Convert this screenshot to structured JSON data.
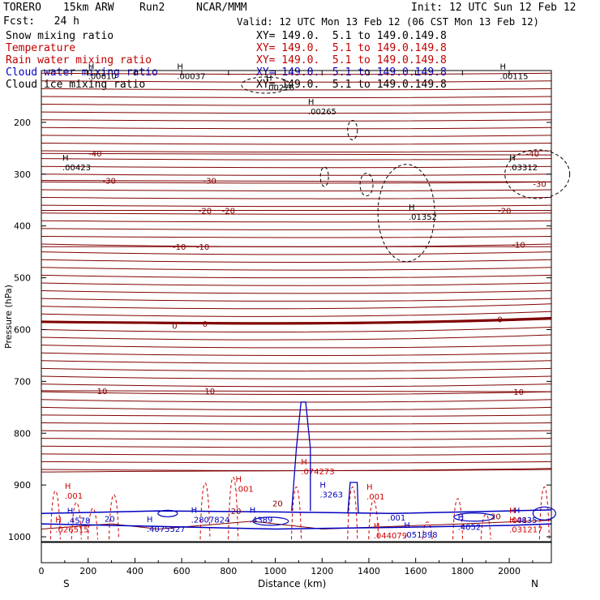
{
  "header": {
    "model": "TORERO",
    "resolution": "15km ARW",
    "run": "Run2",
    "org": "NCAR/MMM",
    "init": "Init: 12 UTC Sun 12 Feb 12",
    "fcst": "Fcst:   24 h",
    "valid": "Valid: 12 UTC Mon 13 Feb 12 (06 CST Mon 13 Feb 12)"
  },
  "fields": [
    {
      "label": "Snow mixing ratio",
      "xy": "XY= 149.0.  5.1 to 149.0.149.8",
      "color": "#000000"
    },
    {
      "label": "Temperature",
      "xy": "XY= 149.0.  5.1 to 149.0.149.8",
      "color": "#c00000"
    },
    {
      "label": "Rain water mixing ratio",
      "xy": "XY= 149.0.  5.1 to 149.0.149.8",
      "color": "#c00000"
    },
    {
      "label": "Cloud water mixing ratio",
      "xy": "XY= 149.0.  5.1 to 149.0.149.8",
      "color": "#0000c0"
    },
    {
      "label": "Cloud ice mixing ratio",
      "xy": "XY= 149.0.  5.1 to 149.0.149.8",
      "color": "#000000"
    }
  ],
  "chart_data": {
    "type": "cross-section contour",
    "xlabel": "Distance (km)",
    "ylabel": "Pressure (hPa)",
    "xlim": [
      0,
      2180
    ],
    "ylim": [
      100,
      1050
    ],
    "x_ticks": [
      0,
      200,
      400,
      600,
      800,
      1000,
      1200,
      1400,
      1600,
      1800,
      2000
    ],
    "y_ticks": [
      200,
      300,
      400,
      500,
      600,
      700,
      800,
      900,
      1000
    ],
    "end_labels": {
      "left": "S",
      "right": "N"
    },
    "colors": {
      "temperature": "#800000",
      "rain": "#d00000",
      "cloud_water": "#0000c0",
      "ice": "#000000",
      "axis": "#000000"
    },
    "temperature_isotherms": [
      {
        "label": "-40",
        "p": [
          260,
          260,
          262,
          263
        ]
      },
      {
        "label": "-30",
        "p": [
          312,
          312,
          314,
          315
        ]
      },
      {
        "label": "-20",
        "p": [
          370,
          370,
          371,
          370
        ]
      },
      {
        "label": "-10",
        "p": [
          440,
          440,
          442,
          440
        ]
      },
      {
        "label": "0",
        "p": [
          585,
          588,
          592,
          578
        ]
      },
      {
        "label": "10",
        "p": [
          718,
          718,
          722,
          720
        ]
      },
      {
        "label": "20",
        "p": [
          875,
          872,
          874,
          868
        ]
      }
    ],
    "temperature_labels": [
      {
        "text": "-40",
        "x": 230,
        "p": 260
      },
      {
        "text": "-40",
        "x": 2100,
        "p": 260
      },
      {
        "text": "-30",
        "x": 290,
        "p": 312
      },
      {
        "text": "-30",
        "x": 720,
        "p": 312
      },
      {
        "text": "-30",
        "x": 2130,
        "p": 318
      },
      {
        "text": "-20",
        "x": 700,
        "p": 370
      },
      {
        "text": "-20",
        "x": 800,
        "p": 370
      },
      {
        "text": "-20",
        "x": 1980,
        "p": 370
      },
      {
        "text": "-10",
        "x": 590,
        "p": 440
      },
      {
        "text": "-10",
        "x": 690,
        "p": 440
      },
      {
        "text": "-10",
        "x": 2040,
        "p": 436
      },
      {
        "text": "0",
        "x": 570,
        "p": 592
      },
      {
        "text": "0",
        "x": 700,
        "p": 588
      },
      {
        "text": "0",
        "x": 1960,
        "p": 580
      },
      {
        "text": "10",
        "x": 260,
        "p": 718
      },
      {
        "text": "10",
        "x": 720,
        "p": 718
      },
      {
        "text": "10",
        "x": 2040,
        "p": 720
      },
      {
        "text": "20",
        "x": 1010,
        "p": 935
      }
    ],
    "ice_maxima": [
      {
        "value": ".00610",
        "x": 200,
        "p": 110
      },
      {
        "value": ".00037",
        "x": 580,
        "p": 110
      },
      {
        "value": ".00226",
        "x": 960,
        "p": 132
      },
      {
        "value": ".00265",
        "x": 1140,
        "p": 178
      },
      {
        "value": ".00423",
        "x": 90,
        "p": 286
      },
      {
        "value": ".01352",
        "x": 1570,
        "p": 382
      },
      {
        "value": ".00115",
        "x": 1960,
        "p": 110
      },
      {
        "value": ".03312",
        "x": 2000,
        "p": 286
      }
    ],
    "rain_maxima": [
      {
        "value": ".001",
        "x": 100,
        "p": 920
      },
      {
        "value": ".001",
        "x": 830,
        "p": 907
      },
      {
        "value": ".074273",
        "x": 1110,
        "p": 873
      },
      {
        "value": ".001",
        "x": 1390,
        "p": 922
      },
      {
        "value": ".026515",
        "x": 60,
        "p": 985
      },
      {
        "value": ".044079",
        "x": 1420,
        "p": 997
      },
      {
        "value": ".001",
        "x": 2000,
        "p": 967
      },
      {
        "value": ".031217",
        "x": 2000,
        "p": 985
      }
    ],
    "cloud_water_maxima": [
      {
        "value": ".4578",
        "x": 110,
        "p": 968
      },
      {
        "value": ".4075527",
        "x": 450,
        "p": 984
      },
      {
        "value": ".2807824",
        "x": 640,
        "p": 966
      },
      {
        "value": ".4389",
        "x": 890,
        "p": 966
      },
      {
        "value": ".3263",
        "x": 1190,
        "p": 918
      },
      {
        "value": ".051898",
        "x": 1550,
        "p": 995
      },
      {
        "value": ".4052",
        "x": 1780,
        "p": 980
      },
      {
        "value": ".4835",
        "x": 2020,
        "p": 967
      }
    ],
    "minor_labels": [
      {
        "text": "20",
        "x": 270,
        "p": 965,
        "color": "#0000c0"
      },
      {
        "text": "20",
        "x": 810,
        "p": 950,
        "color": "#800000"
      },
      {
        "text": ".001",
        "x": 1480,
        "p": 962,
        "color": "#0000c0"
      },
      {
        "text": "20",
        "x": 1920,
        "p": 960,
        "color": "#800000"
      }
    ]
  }
}
